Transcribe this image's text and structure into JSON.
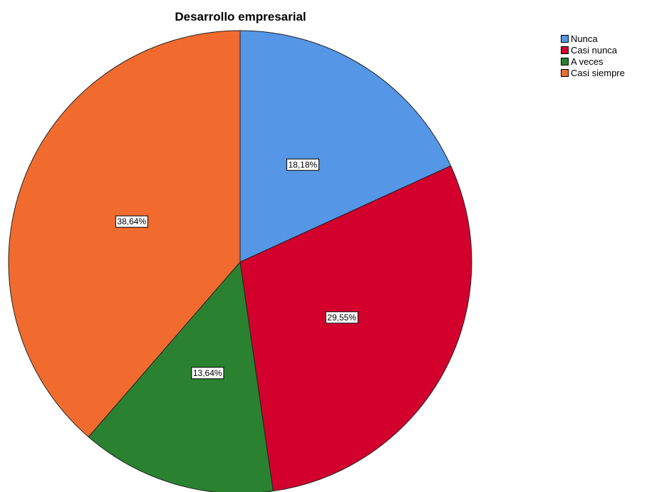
{
  "chart_data": {
    "type": "pie",
    "title": "Desarrollo empresarial",
    "categories": [
      "Nunca",
      "Casi nunca",
      "A veces",
      "Casi siempre"
    ],
    "values": [
      18.18,
      29.55,
      13.64,
      38.64
    ],
    "value_labels": [
      "18,18%",
      "29,55%",
      "13,64%",
      "38,64%"
    ],
    "colors": [
      "#5596e6",
      "#d3002e",
      "#2a8230",
      "#f26b2e"
    ],
    "start_angle": "12 o'clock",
    "direction": "clockwise",
    "legend_position": "top-right"
  }
}
